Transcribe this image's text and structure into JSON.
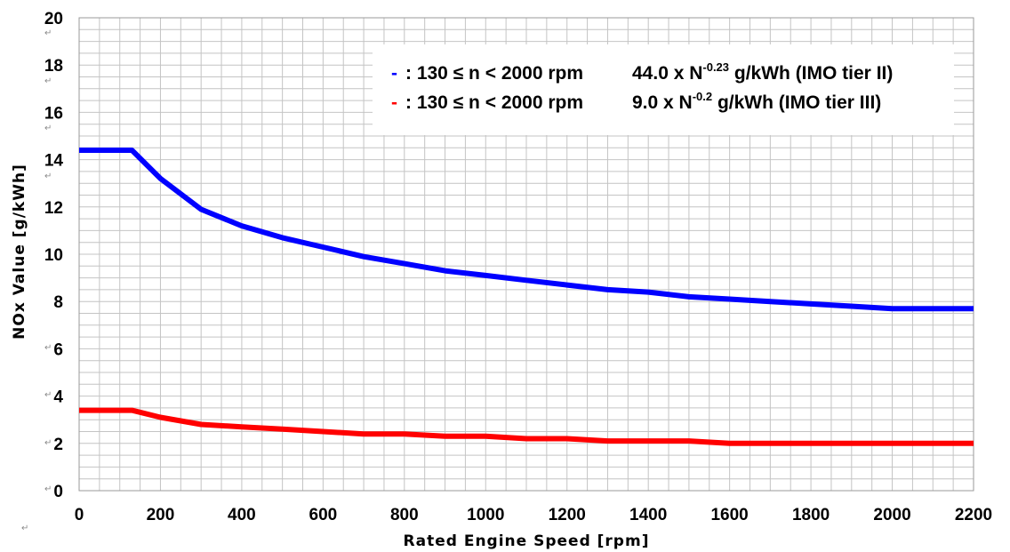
{
  "chart_data": {
    "type": "line",
    "xlabel": "Rated Engine Speed [rpm]",
    "ylabel": "NOx Value [g/kWh]",
    "xlim": [
      0,
      2200
    ],
    "ylim": [
      0,
      20
    ],
    "x_ticks": [
      "0",
      "200",
      "400",
      "600",
      "800",
      "1000",
      "1200",
      "1400",
      "1600",
      "1800",
      "2000",
      "2200"
    ],
    "y_ticks": [
      "0",
      "2",
      "4",
      "6",
      "8",
      "10",
      "12",
      "14",
      "16",
      "18",
      "20"
    ],
    "grid": true,
    "legend_position": "top-right",
    "series": [
      {
        "color": "#0000ff",
        "legend": {
          "marker": "-",
          "range": ": 130 ≤ n < 2000 rpm",
          "formula_pre": "44.0 x N",
          "exponent": "-0.23",
          "formula_post": " g/kWh (IMO tier II)"
        },
        "x": [
          0,
          130,
          200,
          300,
          400,
          500,
          600,
          700,
          800,
          900,
          1000,
          1100,
          1200,
          1300,
          1400,
          1500,
          1600,
          1700,
          1800,
          1900,
          2000,
          2200
        ],
        "y": [
          14.4,
          14.4,
          13.2,
          11.9,
          11.2,
          10.7,
          10.3,
          9.9,
          9.6,
          9.3,
          9.1,
          8.9,
          8.7,
          8.5,
          8.4,
          8.2,
          8.1,
          8.0,
          7.9,
          7.8,
          7.7,
          7.7
        ]
      },
      {
        "color": "#ff0000",
        "legend": {
          "marker": "-",
          "range": ": 130 ≤ n < 2000 rpm",
          "formula_pre": "9.0 x N",
          "exponent": "-0.2",
          "formula_post": " g/kWh (IMO tier III)"
        },
        "x": [
          0,
          130,
          200,
          300,
          400,
          500,
          600,
          700,
          800,
          900,
          1000,
          1100,
          1200,
          1300,
          1400,
          1500,
          1600,
          1700,
          1800,
          1900,
          2000,
          2200
        ],
        "y": [
          3.4,
          3.4,
          3.1,
          2.8,
          2.7,
          2.6,
          2.5,
          2.4,
          2.4,
          2.3,
          2.3,
          2.2,
          2.2,
          2.1,
          2.1,
          2.1,
          2.0,
          2.0,
          2.0,
          2.0,
          2.0,
          2.0
        ]
      }
    ]
  }
}
